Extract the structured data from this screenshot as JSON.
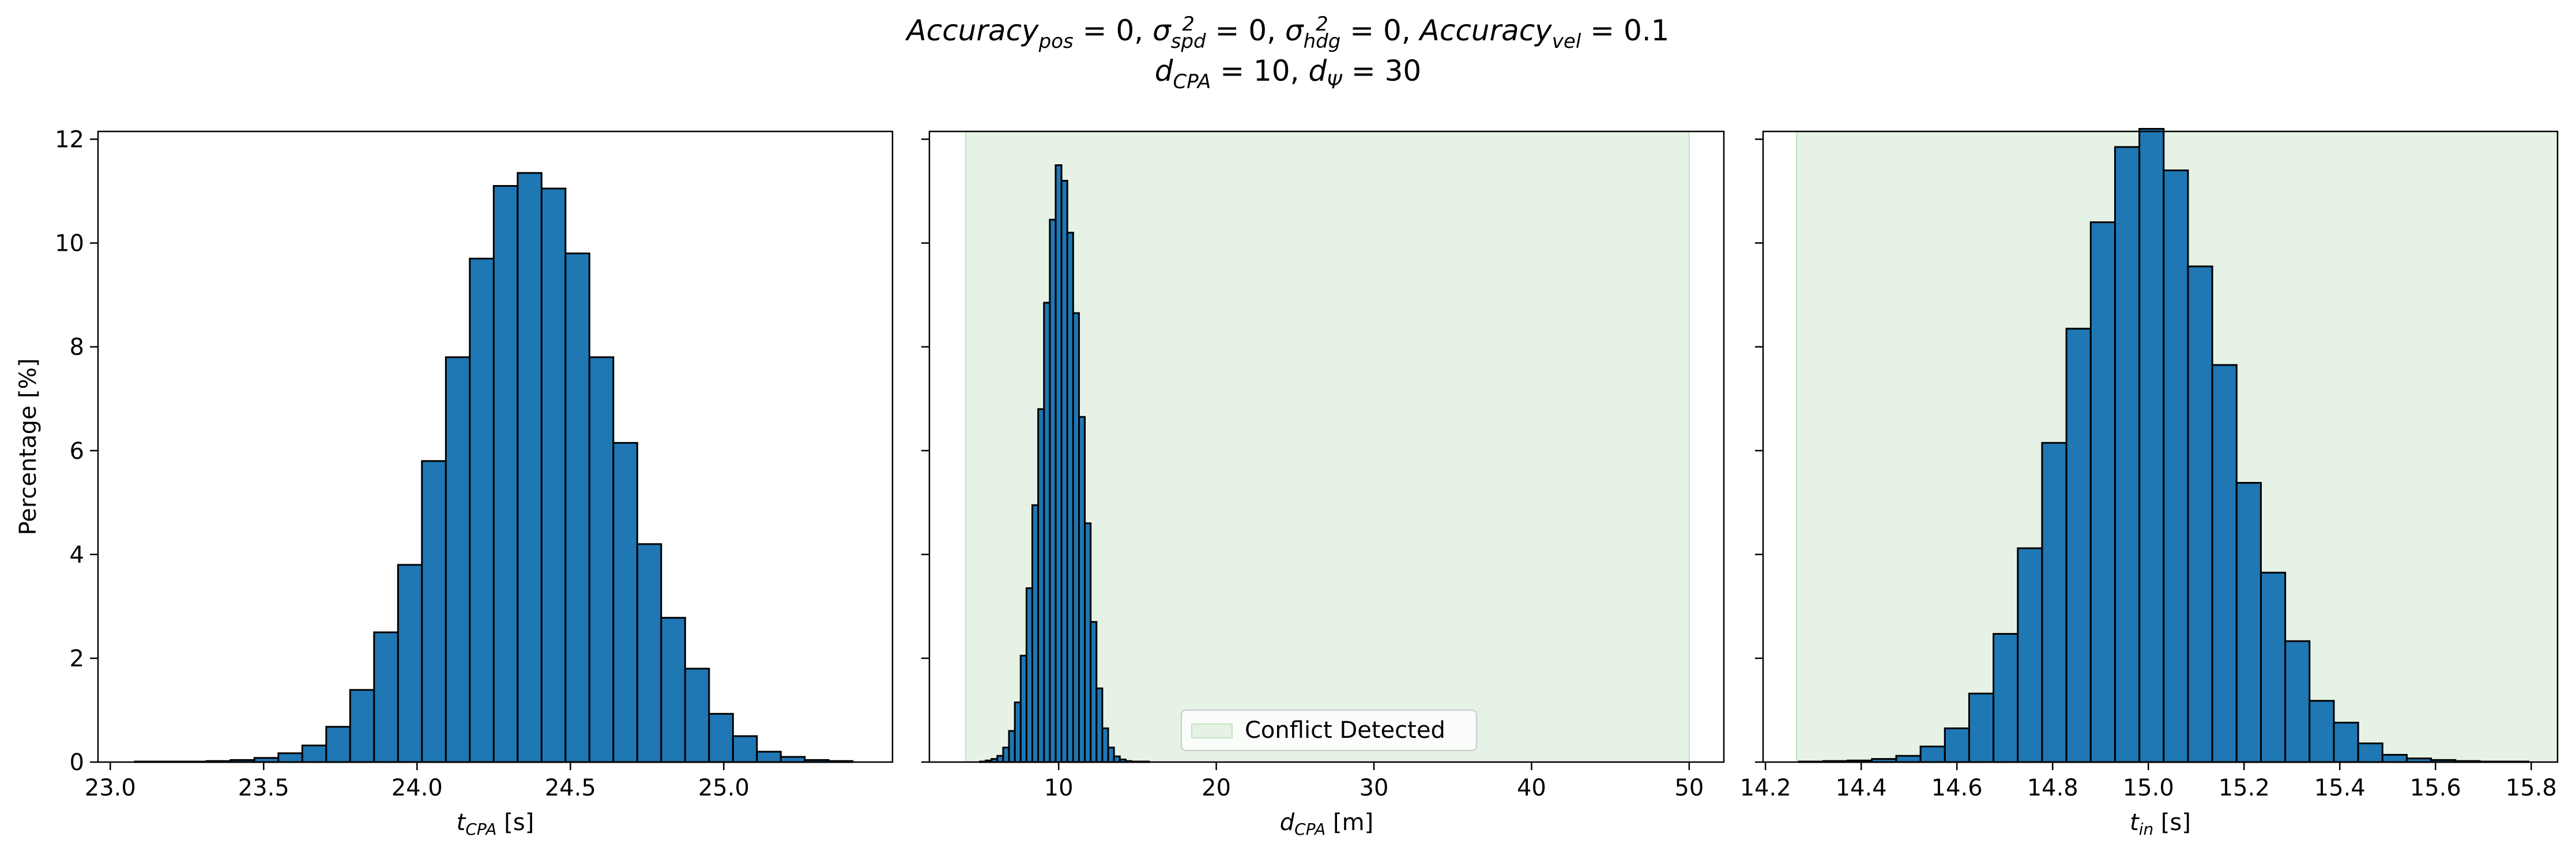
{
  "title": {
    "line1": [
      {
        "t": "Accuracy",
        "sub": "pos",
        "rest": " = 0, "
      },
      {
        "t": "σ",
        "sup": "2",
        "sub": "spd",
        "rest": " = 0, "
      },
      {
        "t": "σ",
        "sup": "2",
        "sub": "hdg",
        "rest": " = 0, "
      },
      {
        "t": "Accuracy",
        "sub": "vel",
        "rest": " = 0.1"
      }
    ],
    "line2": [
      {
        "t": "d",
        "sub": "CPA",
        "rest": " = 10, "
      },
      {
        "t": "d",
        "sub": "Ψ",
        "rest": " = 30"
      }
    ]
  },
  "chart_data": [
    {
      "type": "bar",
      "name": "t_cpa_histogram",
      "xlabel": {
        "main": "t",
        "sub": "CPA",
        "unit": " [s]"
      },
      "ylabel": "Percentage [%]",
      "xlim": [
        22.96,
        25.55
      ],
      "ylim": [
        0,
        12.15
      ],
      "xticks": [
        23.0,
        23.5,
        24.0,
        24.5,
        25.0
      ],
      "xtick_labels": [
        "23.0",
        "23.5",
        "24.0",
        "24.5",
        "25.0"
      ],
      "yticks": [
        0,
        2,
        4,
        6,
        8,
        10,
        12
      ],
      "ytick_labels": [
        "0",
        "2",
        "4",
        "6",
        "8",
        "10",
        "12"
      ],
      "bin_start": 23.08,
      "bin_width": 0.078,
      "values": [
        0.01,
        0.01,
        0.01,
        0.02,
        0.04,
        0.08,
        0.17,
        0.32,
        0.68,
        1.39,
        2.5,
        3.8,
        5.8,
        7.8,
        9.7,
        11.1,
        11.35,
        11.05,
        9.8,
        7.8,
        6.15,
        4.2,
        2.78,
        1.8,
        0.93,
        0.5,
        0.2,
        0.1,
        0.04,
        0.02
      ]
    },
    {
      "type": "bar",
      "name": "d_cpa_histogram",
      "xlabel": {
        "main": "d",
        "sub": "CPA",
        "unit": " [m]"
      },
      "xlim": [
        1.8,
        52.2
      ],
      "ylim": [
        0,
        12.15
      ],
      "xticks": [
        10,
        20,
        30,
        40,
        50
      ],
      "xtick_labels": [
        "10",
        "20",
        "30",
        "40",
        "50"
      ],
      "yticks": [
        0,
        2,
        4,
        6,
        8,
        10,
        12
      ],
      "region": {
        "x0": 4.1,
        "x1": 50.0,
        "color": "#e5f2e5",
        "edge": "#c2e1c2",
        "label": "Conflict Detected"
      },
      "legend_loc": "lower-center",
      "bin_start": 5.0,
      "bin_width": 0.37,
      "values": [
        0.01,
        0.03,
        0.06,
        0.12,
        0.28,
        0.6,
        1.15,
        2.05,
        3.35,
        4.95,
        6.8,
        8.85,
        10.45,
        11.5,
        11.2,
        10.2,
        8.65,
        6.65,
        4.6,
        2.7,
        1.42,
        0.65,
        0.28,
        0.11,
        0.05,
        0.02,
        0.01,
        0.01,
        0.01
      ]
    },
    {
      "type": "bar",
      "name": "t_in_histogram",
      "xlabel": {
        "main": "t",
        "sub": "in",
        "unit": " [s]"
      },
      "xlim": [
        14.195,
        15.855
      ],
      "ylim": [
        0,
        12.15
      ],
      "xticks": [
        14.2,
        14.4,
        14.6,
        14.8,
        15.0,
        15.2,
        15.4,
        15.6,
        15.8
      ],
      "xtick_labels": [
        "14.2",
        "14.4",
        "14.6",
        "14.8",
        "15.0",
        "15.2",
        "15.4",
        "15.6",
        "15.8"
      ],
      "yticks": [
        0,
        2,
        4,
        6,
        8,
        10,
        12
      ],
      "region": {
        "x0": 14.265,
        "x1": 15.855,
        "color": "#e5f2e5",
        "edge": "#c2e1c2"
      },
      "bin_start": 14.27,
      "bin_width": 0.0508,
      "values": [
        0.01,
        0.02,
        0.03,
        0.06,
        0.12,
        0.3,
        0.65,
        1.32,
        2.47,
        4.12,
        6.15,
        8.35,
        10.4,
        11.85,
        12.2,
        11.4,
        9.55,
        7.65,
        5.38,
        3.65,
        2.33,
        1.18,
        0.76,
        0.36,
        0.14,
        0.07,
        0.04,
        0.02,
        0.01,
        0.01
      ]
    }
  ]
}
